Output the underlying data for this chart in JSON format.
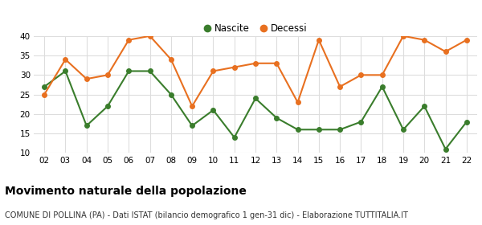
{
  "years": [
    "02",
    "03",
    "04",
    "05",
    "06",
    "07",
    "08",
    "09",
    "10",
    "11",
    "12",
    "13",
    "14",
    "15",
    "16",
    "17",
    "18",
    "19",
    "20",
    "21",
    "22"
  ],
  "nascite": [
    27,
    31,
    17,
    22,
    31,
    31,
    25,
    17,
    21,
    14,
    24,
    19,
    16,
    16,
    16,
    18,
    27,
    16,
    22,
    11,
    18
  ],
  "decessi": [
    25,
    34,
    29,
    30,
    39,
    40,
    34,
    22,
    31,
    32,
    33,
    33,
    23,
    39,
    27,
    30,
    30,
    40,
    39,
    36,
    39
  ],
  "nascite_color": "#3a7d2c",
  "decessi_color": "#e87020",
  "bg_color": "#ffffff",
  "grid_color": "#dddddd",
  "title": "Movimento naturale della popolazione",
  "subtitle": "COMUNE DI POLLINA (PA) - Dati ISTAT (bilancio demografico 1 gen-31 dic) - Elaborazione TUTTITALIA.IT",
  "ylim": [
    10,
    40
  ],
  "yticks": [
    10,
    15,
    20,
    25,
    30,
    35,
    40
  ],
  "legend_nascite": "Nascite",
  "legend_decessi": "Decessi",
  "title_fontsize": 10,
  "subtitle_fontsize": 7,
  "marker_size": 4,
  "linewidth": 1.5
}
